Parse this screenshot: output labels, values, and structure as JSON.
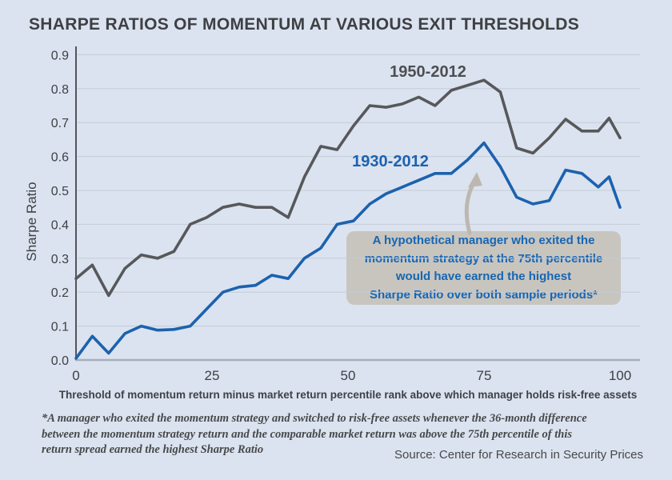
{
  "title": "SHARPE RATIOS OF MOMENTUM AT VARIOUS EXIT THRESHOLDS",
  "chart_data": {
    "type": "line",
    "title": "SHARPE RATIOS OF MOMENTUM AT VARIOUS EXIT THRESHOLDS",
    "xlabel": "Threshold of momentum return minus market return percentile rank above which manager holds risk-free assets",
    "ylabel": "Sharpe Ratio",
    "xlim": [
      0,
      100
    ],
    "ylim": [
      0.0,
      0.9
    ],
    "grid": true,
    "x_ticks": [
      "0",
      "25",
      "50",
      "75",
      "100"
    ],
    "y_ticks": [
      "0.0",
      "0.1",
      "0.2",
      "0.3",
      "0.4",
      "0.5",
      "0.6",
      "0.7",
      "0.8",
      "0.9"
    ],
    "x": [
      0,
      3,
      6,
      9,
      12,
      15,
      18,
      21,
      24,
      27,
      30,
      33,
      36,
      39,
      42,
      45,
      48,
      51,
      54,
      57,
      60,
      63,
      66,
      69,
      72,
      75,
      78,
      81,
      84,
      87,
      90,
      93,
      96,
      98,
      100
    ],
    "series": [
      {
        "name": "1950-2012",
        "color": "#57585a",
        "label_color": "#4d4f52",
        "values": [
          0.24,
          0.28,
          0.19,
          0.27,
          0.31,
          0.3,
          0.32,
          0.4,
          0.42,
          0.45,
          0.46,
          0.45,
          0.45,
          0.42,
          0.54,
          0.63,
          0.62,
          0.69,
          0.75,
          0.745,
          0.755,
          0.775,
          0.75,
          0.795,
          0.81,
          0.825,
          0.79,
          0.625,
          0.61,
          0.655,
          0.71,
          0.675,
          0.675,
          0.713,
          0.655
        ]
      },
      {
        "name": "1930-2012",
        "color": "#1c62ae",
        "label_color": "#1c62ae",
        "values": [
          0.005,
          0.07,
          0.02,
          0.078,
          0.1,
          0.088,
          0.09,
          0.1,
          0.15,
          0.2,
          0.215,
          0.22,
          0.25,
          0.24,
          0.3,
          0.33,
          0.4,
          0.41,
          0.46,
          0.49,
          0.51,
          0.53,
          0.55,
          0.55,
          0.59,
          0.64,
          0.57,
          0.48,
          0.46,
          0.47,
          0.56,
          0.55,
          0.51,
          0.54,
          0.45
        ]
      }
    ],
    "legend_position": "inline-labels"
  },
  "annotation": {
    "lines": [
      "A hypothetical manager who exited the",
      "momentum strategy at the 75th percentile",
      "would have earned the highest",
      "Sharpe Ratio over both sample periods*"
    ]
  },
  "footnote": "*A manager who exited the momentum strategy and switched to risk-free assets whenever the 36-month difference\nbetween the momentum strategy return and the comparable market return was above the 75th percentile of this\nreturn spread earned the highest Sharpe Ratio",
  "source": "Source: Center for Research in Security Prices",
  "colors": {
    "background": "#dbe3f0",
    "gridline": "#c5ccd8",
    "y_axis": "#53565b",
    "x_axis": "#a7aebb",
    "tick_text": "#3d4145",
    "series_1950": "#57585a",
    "series_1930": "#1c62ae",
    "annotation_background": "#c8c5bf",
    "annotation_text": "#1766b3",
    "arrow": "#bcb8b0",
    "footnote_text": "#47484a"
  }
}
